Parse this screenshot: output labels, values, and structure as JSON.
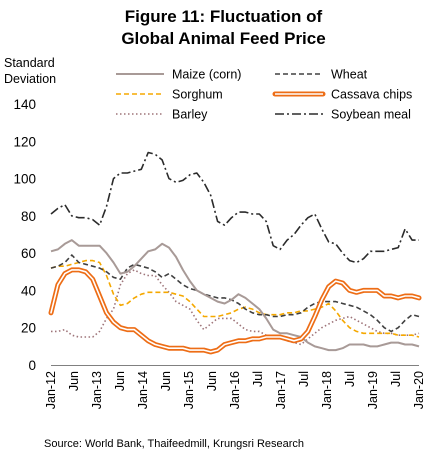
{
  "chart_data": {
    "type": "line",
    "title_lines": [
      "Figure 11: Fluctuation of",
      "Global Animal Feed Price"
    ],
    "ylabel_lines": [
      "Standard",
      "Deviation"
    ],
    "ylim": [
      0,
      140
    ],
    "yticks": [
      0,
      20,
      40,
      60,
      80,
      100,
      120,
      140
    ],
    "xticks": [
      "Jan-12",
      "Jun",
      "Jan-13",
      "Jun",
      "Jan-14",
      "Jun",
      "Jan-15",
      "Jun",
      "Jan-16",
      "Jul",
      "Jan-17",
      "Jul",
      "Jan-18",
      "Jul",
      "Jan-19",
      "Jul",
      "Jan-20"
    ],
    "legend_placement": "top",
    "grid": false,
    "series": [
      {
        "name": "Maize (corn)",
        "color": "#a89a97",
        "style": "solid",
        "values": [
          61,
          62,
          65,
          67,
          64,
          64,
          64,
          64,
          60,
          55,
          49,
          50,
          53,
          57,
          61,
          62,
          65,
          63,
          58,
          51,
          45,
          40,
          38,
          36,
          34,
          33,
          35,
          38,
          36,
          33,
          30,
          25,
          19,
          17,
          17,
          16,
          15,
          12,
          10,
          9,
          8,
          8,
          9,
          11,
          11,
          11,
          10,
          10,
          11,
          12,
          12,
          11,
          11,
          10
        ]
      },
      {
        "name": "Wheat",
        "color": "#404040",
        "style": "dashed",
        "values": [
          52,
          53,
          55,
          59,
          55,
          54,
          53,
          52,
          50,
          47,
          46,
          52,
          54,
          53,
          52,
          50,
          47,
          49,
          46,
          43,
          41,
          40,
          38,
          37,
          36,
          36,
          35,
          33,
          30,
          28,
          27,
          27,
          26,
          26,
          27,
          27,
          28,
          31,
          33,
          34,
          34,
          34,
          33,
          32,
          31,
          29,
          27,
          24,
          20,
          18,
          20,
          24,
          27,
          26
        ]
      },
      {
        "name": "Sorghum",
        "color": "#f5a800",
        "style": "dashed",
        "values": [
          52,
          53,
          53,
          54,
          55,
          56,
          56,
          55,
          48,
          38,
          32,
          33,
          36,
          38,
          39,
          39,
          39,
          39,
          38,
          37,
          34,
          30,
          26,
          26,
          26,
          27,
          28,
          30,
          31,
          30,
          28,
          27,
          27,
          27,
          28,
          28,
          29,
          29,
          30,
          31,
          33,
          29,
          24,
          20,
          18,
          17,
          17,
          17,
          17,
          17,
          16,
          16,
          16,
          15
        ]
      },
      {
        "name": "Cassava chips",
        "color": "#ed6d16",
        "style": "double",
        "values": [
          28,
          43,
          49,
          51,
          51,
          50,
          46,
          37,
          28,
          23,
          20,
          19,
          19,
          16,
          13,
          11,
          10,
          9,
          9,
          9,
          8,
          8,
          8,
          7,
          8,
          11,
          12,
          13,
          13,
          14,
          14,
          15,
          15,
          15,
          14,
          13,
          14,
          18,
          26,
          35,
          42,
          45,
          44,
          40,
          39,
          40,
          40,
          40,
          37,
          37,
          36,
          37,
          37,
          36
        ]
      },
      {
        "name": "Barley",
        "color": "#9e7479",
        "style": "dotted",
        "values": [
          18,
          18,
          19,
          16,
          15,
          15,
          15,
          18,
          25,
          30,
          43,
          49,
          51,
          49,
          48,
          48,
          43,
          39,
          34,
          32,
          30,
          24,
          19,
          22,
          25,
          25,
          25,
          22,
          19,
          18,
          18,
          16,
          15,
          15,
          13,
          12,
          11,
          14,
          17,
          20,
          22,
          24,
          25,
          26,
          24,
          22,
          20,
          18,
          17,
          17,
          16,
          16,
          16,
          17
        ]
      },
      {
        "name": "Soybean meal",
        "color": "#2b2b2b",
        "style": "dashdot",
        "values": [
          81,
          84,
          86,
          80,
          79,
          79,
          78,
          75,
          85,
          100,
          103,
          103,
          104,
          105,
          114,
          113,
          110,
          100,
          98,
          99,
          102,
          103,
          98,
          91,
          77,
          75,
          79,
          82,
          82,
          81,
          81,
          77,
          64,
          62,
          67,
          70,
          75,
          79,
          81,
          73,
          66,
          65,
          60,
          56,
          55,
          57,
          61,
          61,
          61,
          62,
          63,
          73,
          67,
          67
        ]
      }
    ]
  },
  "source": "Source: World Bank, Thaifeedmill, Krungsri Research"
}
